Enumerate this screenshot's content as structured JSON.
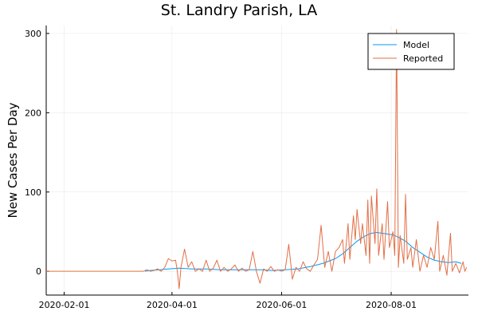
{
  "chart_data": {
    "type": "line",
    "title": "St. Landry Parish, LA",
    "xlabel": "",
    "ylabel": "New Cases Per Day",
    "x_axis_type": "date",
    "xlim": [
      "2020-01-22",
      "2020-09-13"
    ],
    "ylim": [
      -30,
      310
    ],
    "x_ticks": [
      "2020-02-01",
      "2020-04-01",
      "2020-06-01",
      "2020-08-01"
    ],
    "y_ticks": [
      0,
      100,
      200,
      300
    ],
    "grid": true,
    "legend": {
      "position": "top-right"
    },
    "series": [
      {
        "name": "Model",
        "color": "#009AFA",
        "points": [
          [
            "2020-03-17",
            0
          ],
          [
            "2020-03-20",
            1
          ],
          [
            "2020-03-25",
            2
          ],
          [
            "2020-03-30",
            3
          ],
          [
            "2020-04-05",
            4
          ],
          [
            "2020-04-12",
            3
          ],
          [
            "2020-04-20",
            3
          ],
          [
            "2020-04-28",
            2
          ],
          [
            "2020-05-05",
            2
          ],
          [
            "2020-05-12",
            2
          ],
          [
            "2020-05-20",
            2
          ],
          [
            "2020-05-27",
            1
          ],
          [
            "2020-06-03",
            2
          ],
          [
            "2020-06-10",
            3
          ],
          [
            "2020-06-17",
            6
          ],
          [
            "2020-06-24",
            10
          ],
          [
            "2020-07-01",
            16
          ],
          [
            "2020-07-05",
            22
          ],
          [
            "2020-07-09",
            30
          ],
          [
            "2020-07-13",
            38
          ],
          [
            "2020-07-17",
            44
          ],
          [
            "2020-07-21",
            48
          ],
          [
            "2020-07-24",
            49
          ],
          [
            "2020-07-27",
            48
          ],
          [
            "2020-07-30",
            47
          ],
          [
            "2020-08-02",
            46
          ],
          [
            "2020-08-05",
            43
          ],
          [
            "2020-08-09",
            38
          ],
          [
            "2020-08-13",
            30
          ],
          [
            "2020-08-17",
            24
          ],
          [
            "2020-08-21",
            18
          ],
          [
            "2020-08-25",
            14
          ],
          [
            "2020-08-29",
            12
          ],
          [
            "2020-09-02",
            11
          ],
          [
            "2020-09-06",
            12
          ],
          [
            "2020-09-09",
            10
          ]
        ]
      },
      {
        "name": "Reported",
        "color": "#E26F46",
        "points": [
          [
            "2020-01-22",
            0
          ],
          [
            "2020-03-16",
            0
          ],
          [
            "2020-03-18",
            2
          ],
          [
            "2020-03-20",
            0
          ],
          [
            "2020-03-22",
            1
          ],
          [
            "2020-03-24",
            3
          ],
          [
            "2020-03-26",
            0
          ],
          [
            "2020-03-28",
            5
          ],
          [
            "2020-03-30",
            16
          ],
          [
            "2020-04-01",
            13
          ],
          [
            "2020-04-03",
            14
          ],
          [
            "2020-04-04",
            0
          ],
          [
            "2020-04-05",
            -22
          ],
          [
            "2020-04-06",
            5
          ],
          [
            "2020-04-08",
            28
          ],
          [
            "2020-04-10",
            5
          ],
          [
            "2020-04-12",
            12
          ],
          [
            "2020-04-14",
            0
          ],
          [
            "2020-04-16",
            3
          ],
          [
            "2020-04-18",
            0
          ],
          [
            "2020-04-20",
            14
          ],
          [
            "2020-04-22",
            0
          ],
          [
            "2020-04-24",
            4
          ],
          [
            "2020-04-26",
            14
          ],
          [
            "2020-04-28",
            0
          ],
          [
            "2020-04-30",
            5
          ],
          [
            "2020-05-02",
            0
          ],
          [
            "2020-05-04",
            3
          ],
          [
            "2020-05-06",
            8
          ],
          [
            "2020-05-08",
            0
          ],
          [
            "2020-05-10",
            4
          ],
          [
            "2020-05-12",
            0
          ],
          [
            "2020-05-14",
            2
          ],
          [
            "2020-05-16",
            25
          ],
          [
            "2020-05-18",
            0
          ],
          [
            "2020-05-20",
            -15
          ],
          [
            "2020-05-22",
            3
          ],
          [
            "2020-05-24",
            0
          ],
          [
            "2020-05-26",
            6
          ],
          [
            "2020-05-28",
            0
          ],
          [
            "2020-05-30",
            2
          ],
          [
            "2020-06-01",
            0
          ],
          [
            "2020-06-03",
            2
          ],
          [
            "2020-06-05",
            34
          ],
          [
            "2020-06-07",
            -10
          ],
          [
            "2020-06-09",
            5
          ],
          [
            "2020-06-11",
            0
          ],
          [
            "2020-06-13",
            12
          ],
          [
            "2020-06-15",
            3
          ],
          [
            "2020-06-17",
            0
          ],
          [
            "2020-06-19",
            8
          ],
          [
            "2020-06-21",
            15
          ],
          [
            "2020-06-23",
            58
          ],
          [
            "2020-06-25",
            5
          ],
          [
            "2020-06-27",
            25
          ],
          [
            "2020-06-29",
            0
          ],
          [
            "2020-07-01",
            25
          ],
          [
            "2020-07-03",
            30
          ],
          [
            "2020-07-05",
            40
          ],
          [
            "2020-07-06",
            10
          ],
          [
            "2020-07-08",
            60
          ],
          [
            "2020-07-09",
            15
          ],
          [
            "2020-07-11",
            70
          ],
          [
            "2020-07-12",
            40
          ],
          [
            "2020-07-13",
            78
          ],
          [
            "2020-07-15",
            35
          ],
          [
            "2020-07-16",
            60
          ],
          [
            "2020-07-18",
            20
          ],
          [
            "2020-07-19",
            90
          ],
          [
            "2020-07-20",
            10
          ],
          [
            "2020-07-21",
            95
          ],
          [
            "2020-07-23",
            35
          ],
          [
            "2020-07-24",
            104
          ],
          [
            "2020-07-25",
            20
          ],
          [
            "2020-07-27",
            60
          ],
          [
            "2020-07-28",
            15
          ],
          [
            "2020-07-30",
            88
          ],
          [
            "2020-07-31",
            30
          ],
          [
            "2020-08-02",
            50
          ],
          [
            "2020-08-03",
            20
          ],
          [
            "2020-08-04",
            305
          ],
          [
            "2020-08-05",
            5
          ],
          [
            "2020-08-06",
            45
          ],
          [
            "2020-08-08",
            10
          ],
          [
            "2020-08-09",
            97
          ],
          [
            "2020-08-10",
            15
          ],
          [
            "2020-08-12",
            30
          ],
          [
            "2020-08-13",
            5
          ],
          [
            "2020-08-15",
            40
          ],
          [
            "2020-08-17",
            0
          ],
          [
            "2020-08-19",
            20
          ],
          [
            "2020-08-21",
            5
          ],
          [
            "2020-08-23",
            30
          ],
          [
            "2020-08-25",
            15
          ],
          [
            "2020-08-27",
            63
          ],
          [
            "2020-08-28",
            0
          ],
          [
            "2020-08-30",
            20
          ],
          [
            "2020-09-01",
            -5
          ],
          [
            "2020-09-03",
            48
          ],
          [
            "2020-09-04",
            0
          ],
          [
            "2020-09-06",
            10
          ],
          [
            "2020-09-08",
            -2
          ],
          [
            "2020-09-10",
            12
          ],
          [
            "2020-09-11",
            0
          ],
          [
            "2020-09-12",
            5
          ]
        ]
      }
    ]
  }
}
